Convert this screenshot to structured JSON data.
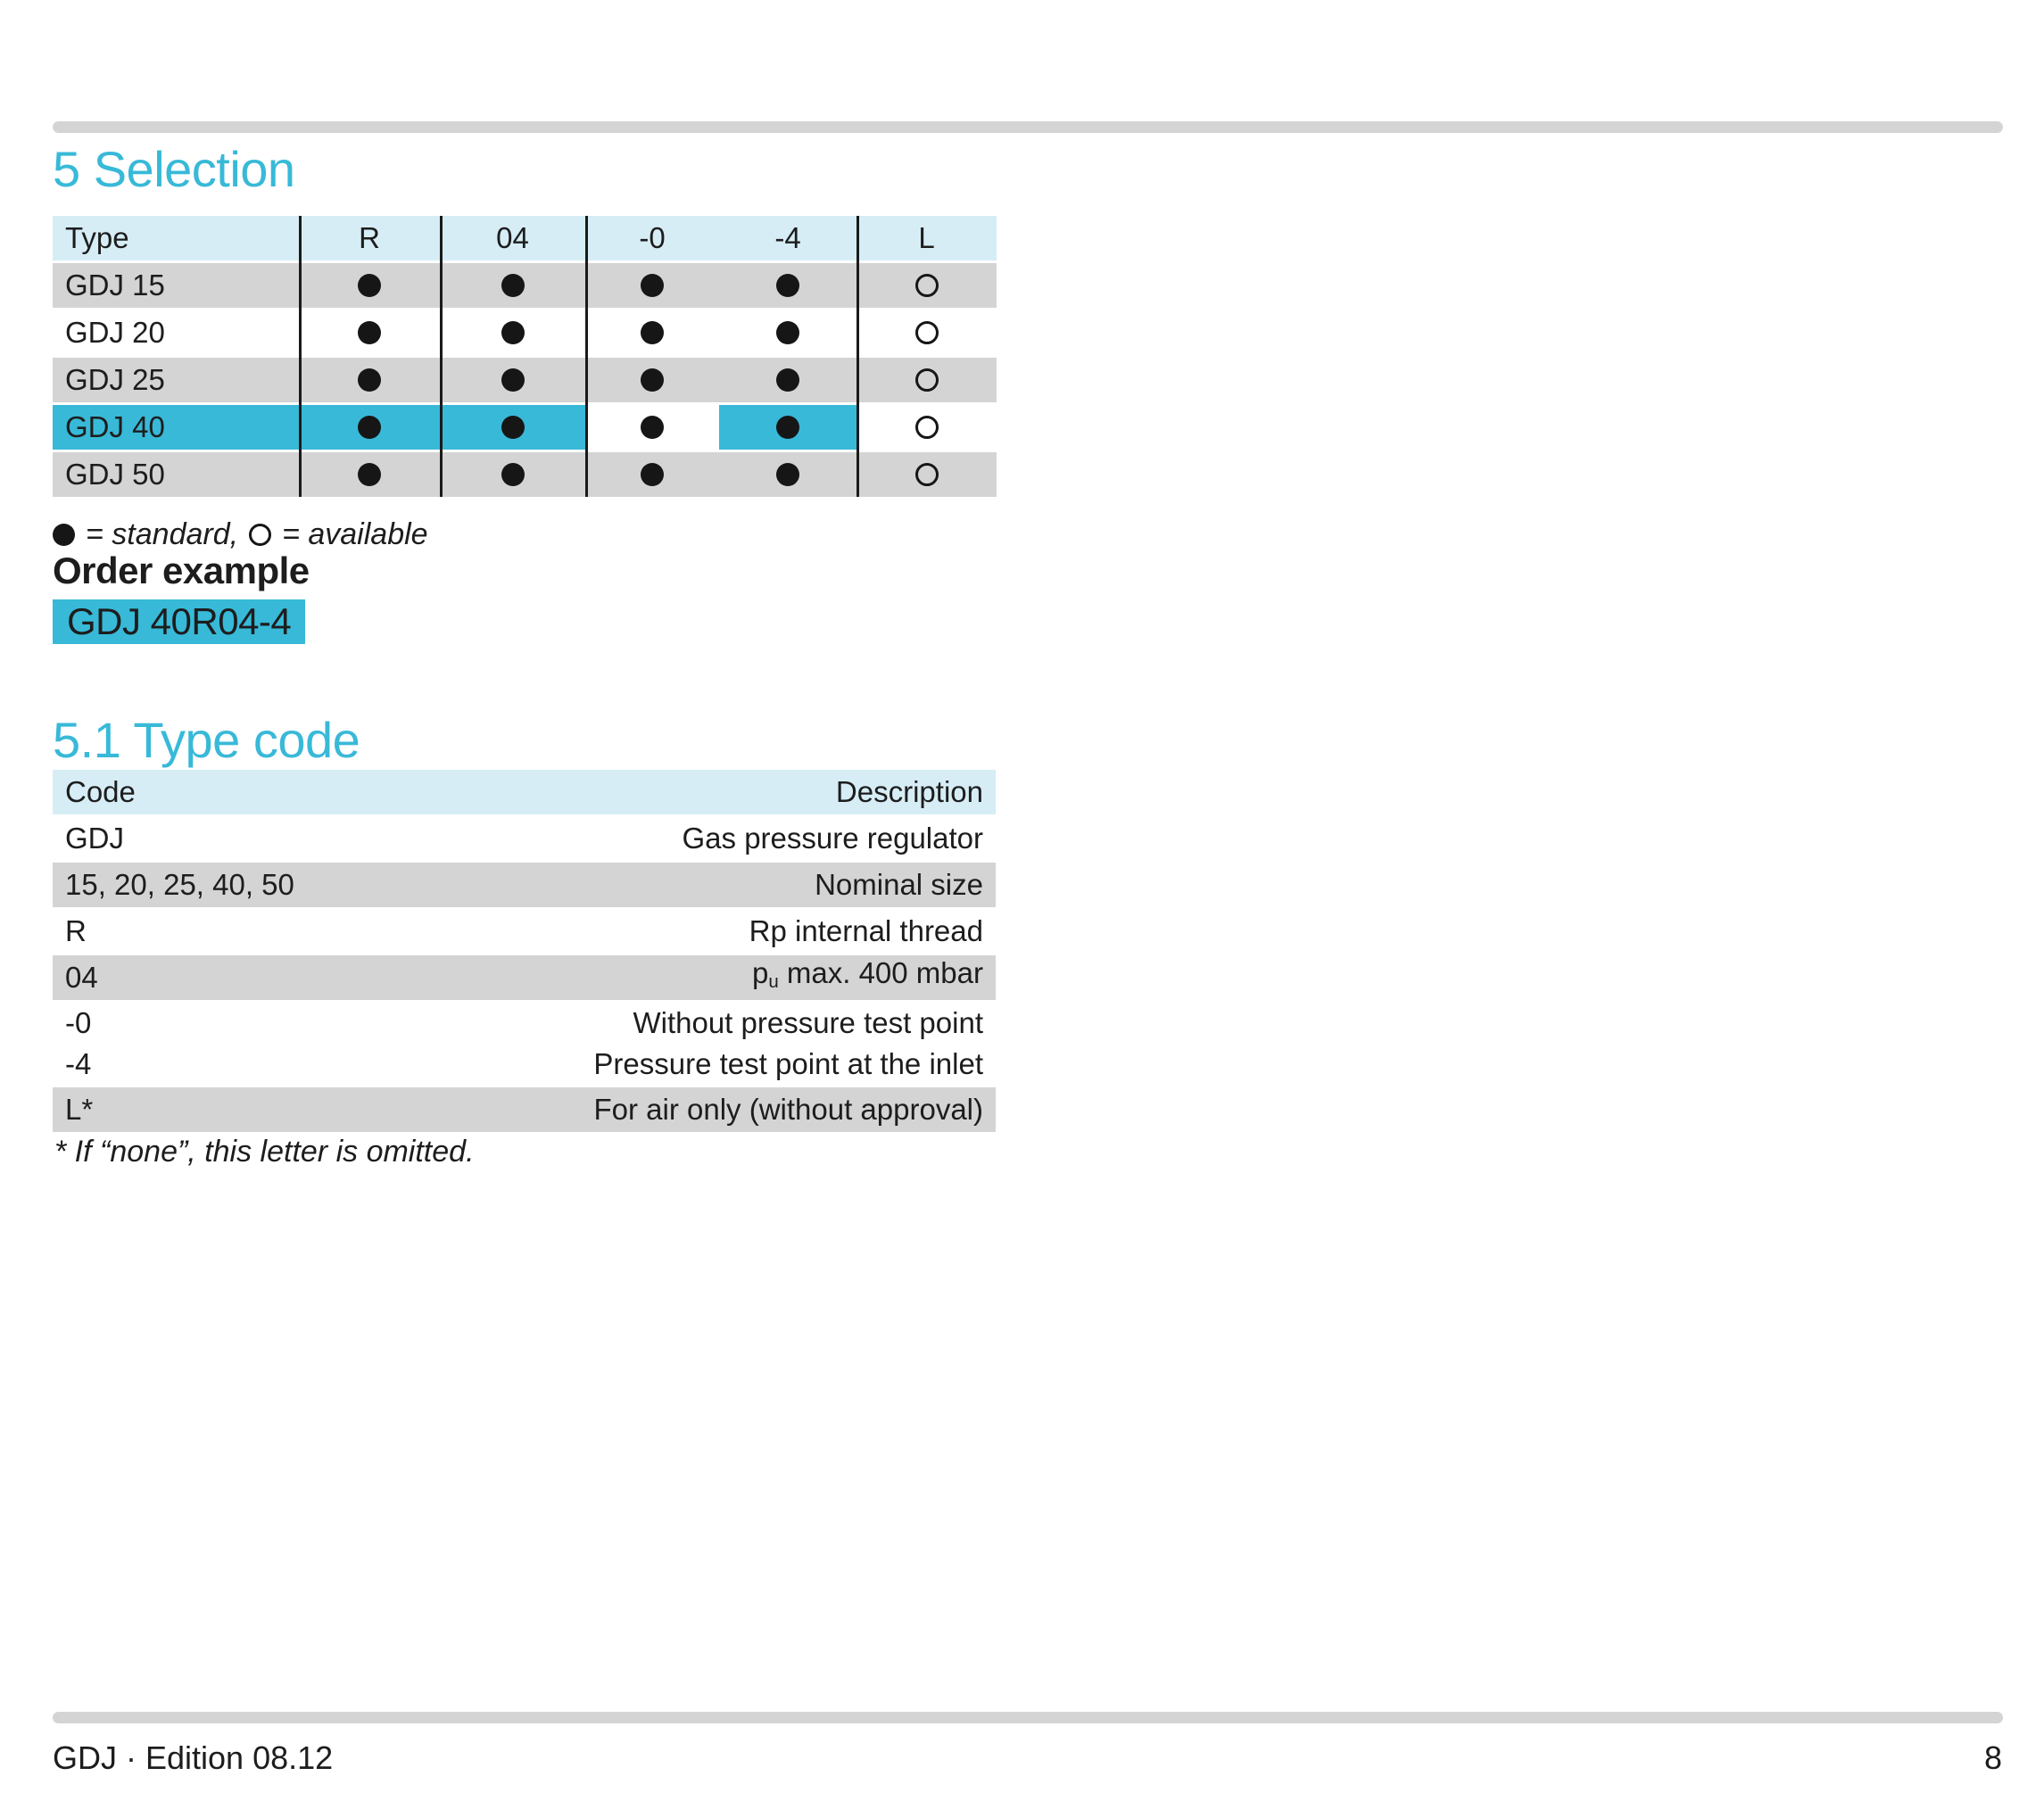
{
  "colors": {
    "accent": "#38b9d8",
    "header_bg": "#d6edf6",
    "row_gray": "#d4d4d4",
    "bar_gray": "#d4d4d4",
    "ink": "#1d1d1d"
  },
  "page": {
    "section_title": "5 Selection",
    "subsection_title": "5.1 Type code",
    "legend": {
      "filled_label": "= standard,",
      "open_label": "= available"
    },
    "order_example_label": "Order example",
    "order_example_code": "GDJ 40R04-4",
    "footnote": "* If “none”, this letter is omitted.",
    "footer_left": "GDJ · Edition 08.12",
    "page_number": "8"
  },
  "selection_table": {
    "columns": [
      "Type",
      "R",
      "04",
      "-0",
      "-4",
      "L"
    ],
    "rows": [
      {
        "label": "GDJ 15",
        "shade": "gray",
        "highlight_cols": [],
        "marks": {
          "R": "standard",
          "04": "standard",
          "-0": "standard",
          "-4": "standard",
          "L": "available"
        }
      },
      {
        "label": "GDJ 20",
        "shade": "white",
        "highlight_cols": [],
        "marks": {
          "R": "standard",
          "04": "standard",
          "-0": "standard",
          "-4": "standard",
          "L": "available"
        }
      },
      {
        "label": "GDJ 25",
        "shade": "gray",
        "highlight_cols": [],
        "marks": {
          "R": "standard",
          "04": "standard",
          "-0": "standard",
          "-4": "standard",
          "L": "available"
        }
      },
      {
        "label": "GDJ 40",
        "shade": "white",
        "highlight_cols": [
          "type",
          "R",
          "04",
          "-4"
        ],
        "marks": {
          "R": "standard",
          "04": "standard",
          "-0": "standard",
          "-4": "standard",
          "L": "available"
        }
      },
      {
        "label": "GDJ 50",
        "shade": "gray",
        "highlight_cols": [],
        "marks": {
          "R": "standard",
          "04": "standard",
          "-0": "standard",
          "-4": "standard",
          "L": "available"
        }
      }
    ]
  },
  "typecode_table": {
    "columns": [
      "Code",
      "Description"
    ],
    "rows": [
      {
        "shade": "white",
        "codes": [
          "GDJ"
        ],
        "descriptions": [
          "Gas pressure regulator"
        ]
      },
      {
        "shade": "gray",
        "codes": [
          "15, 20, 25, 40, 50"
        ],
        "descriptions": [
          "Nominal size"
        ]
      },
      {
        "shade": "white",
        "codes": [
          "R"
        ],
        "descriptions": [
          "Rp internal thread"
        ]
      },
      {
        "shade": "gray",
        "codes": [
          "04"
        ],
        "descriptions": [
          {
            "pre": "p",
            "sub": "u",
            "post": " max. 400 mbar"
          }
        ]
      },
      {
        "shade": "white",
        "codes": [
          "-0",
          "-4"
        ],
        "descriptions": [
          "Without pressure test point",
          "Pressure test point at the inlet"
        ]
      },
      {
        "shade": "gray",
        "codes": [
          "L*"
        ],
        "descriptions": [
          "For air only (without approval)"
        ]
      }
    ]
  }
}
